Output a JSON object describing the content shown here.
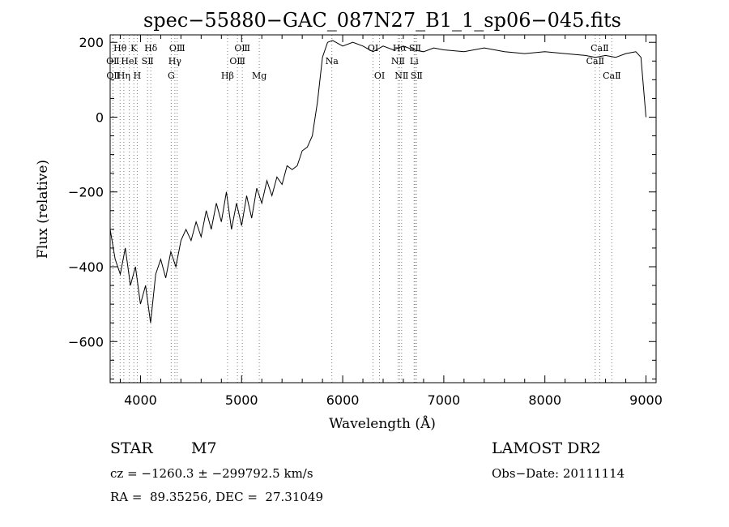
{
  "chart_data": {
    "type": "line",
    "title": "spec−55880−GAC_087N27_B1_1_sp06−045.fits",
    "xlabel": "Wavelength (Å)",
    "ylabel": "Flux (relative)",
    "xlim": [
      3700,
      9100
    ],
    "ylim": [
      -710,
      220
    ],
    "x_ticks": [
      4000,
      5000,
      6000,
      7000,
      8000,
      9000
    ],
    "y_ticks": [
      -600,
      -400,
      -200,
      0,
      200
    ],
    "x_tick_labels": [
      "4000",
      "5000",
      "6000",
      "7000",
      "8000",
      "9000"
    ],
    "y_tick_labels": [
      "−600",
      "−400",
      "−200",
      "0",
      "200"
    ],
    "grid": false,
    "spectrum": {
      "x": [
        3700,
        3750,
        3800,
        3850,
        3900,
        3950,
        4000,
        4050,
        4100,
        4150,
        4200,
        4250,
        4300,
        4350,
        4400,
        4450,
        4500,
        4550,
        4600,
        4650,
        4700,
        4750,
        4800,
        4850,
        4900,
        4950,
        5000,
        5050,
        5100,
        5150,
        5200,
        5250,
        5300,
        5350,
        5400,
        5450,
        5500,
        5550,
        5600,
        5650,
        5700,
        5750,
        5800,
        5850,
        5900,
        6000,
        6100,
        6200,
        6300,
        6400,
        6500,
        6600,
        6700,
        6800,
        6900,
        7000,
        7200,
        7400,
        7600,
        7800,
        8000,
        8200,
        8400,
        8500,
        8600,
        8700,
        8800,
        8900,
        8950,
        9000
      ],
      "y": [
        -300,
        -380,
        -420,
        -350,
        -450,
        -400,
        -500,
        -450,
        -550,
        -420,
        -380,
        -430,
        -360,
        -400,
        -330,
        -300,
        -330,
        -280,
        -320,
        -250,
        -300,
        -230,
        -280,
        -200,
        -300,
        -230,
        -290,
        -210,
        -270,
        -190,
        -230,
        -170,
        -210,
        -160,
        -180,
        -130,
        -140,
        -130,
        -90,
        -80,
        -50,
        40,
        160,
        200,
        205,
        190,
        200,
        190,
        175,
        190,
        180,
        190,
        180,
        175,
        185,
        180,
        175,
        185,
        175,
        170,
        175,
        170,
        165,
        160,
        165,
        160,
        170,
        175,
        160,
        0
      ]
    },
    "lines": [
      {
        "name": "OⅡ",
        "x": 3727,
        "tier": 2
      },
      {
        "name": "OⅡ",
        "x": 3729,
        "tier": 3
      },
      {
        "name": "Hθ",
        "x": 3798,
        "tier": 1
      },
      {
        "name": "Hη",
        "x": 3835,
        "tier": 3
      },
      {
        "name": "HeI",
        "x": 3889,
        "tier": 2
      },
      {
        "name": "K",
        "x": 3934,
        "tier": 1
      },
      {
        "name": "H",
        "x": 3968,
        "tier": 3
      },
      {
        "name": "SⅡ",
        "x": 4070,
        "tier": 2
      },
      {
        "name": "Hδ",
        "x": 4102,
        "tier": 1
      },
      {
        "name": "G",
        "x": 4304,
        "tier": 3
      },
      {
        "name": "Hγ",
        "x": 4340,
        "tier": 2
      },
      {
        "name": "OⅢ",
        "x": 4363,
        "tier": 1
      },
      {
        "name": "Hβ",
        "x": 4861,
        "tier": 3
      },
      {
        "name": "OⅢ",
        "x": 4959,
        "tier": 2
      },
      {
        "name": "OⅢ",
        "x": 5007,
        "tier": 1
      },
      {
        "name": "Mg",
        "x": 5175,
        "tier": 3
      },
      {
        "name": "Na",
        "x": 5893,
        "tier": 2
      },
      {
        "name": "OI",
        "x": 6300,
        "tier": 1
      },
      {
        "name": "OI",
        "x": 6364,
        "tier": 3
      },
      {
        "name": "NⅡ",
        "x": 6548,
        "tier": 2
      },
      {
        "name": "Hα",
        "x": 6563,
        "tier": 1
      },
      {
        "name": "NⅡ",
        "x": 6583,
        "tier": 3
      },
      {
        "name": "Li",
        "x": 6707,
        "tier": 2
      },
      {
        "name": "SⅡ",
        "x": 6716,
        "tier": 1
      },
      {
        "name": "SⅡ",
        "x": 6731,
        "tier": 3
      },
      {
        "name": "CaⅡ",
        "x": 8498,
        "tier": 2
      },
      {
        "name": "CaⅡ",
        "x": 8542,
        "tier": 1
      },
      {
        "name": "CaⅡ",
        "x": 8662,
        "tier": 3
      }
    ]
  },
  "info": {
    "object_class": "STAR",
    "subclass": "M7",
    "survey": "LAMOST DR2",
    "cz": "cz = −1260.3 ± −299792.5 km/s",
    "obs_date": "Obs−Date: 20111114",
    "coords": "RA =  89.35256, DEC =  27.31049"
  },
  "colors": {
    "axis": "#000000",
    "line_markers": "#d9534f"
  }
}
